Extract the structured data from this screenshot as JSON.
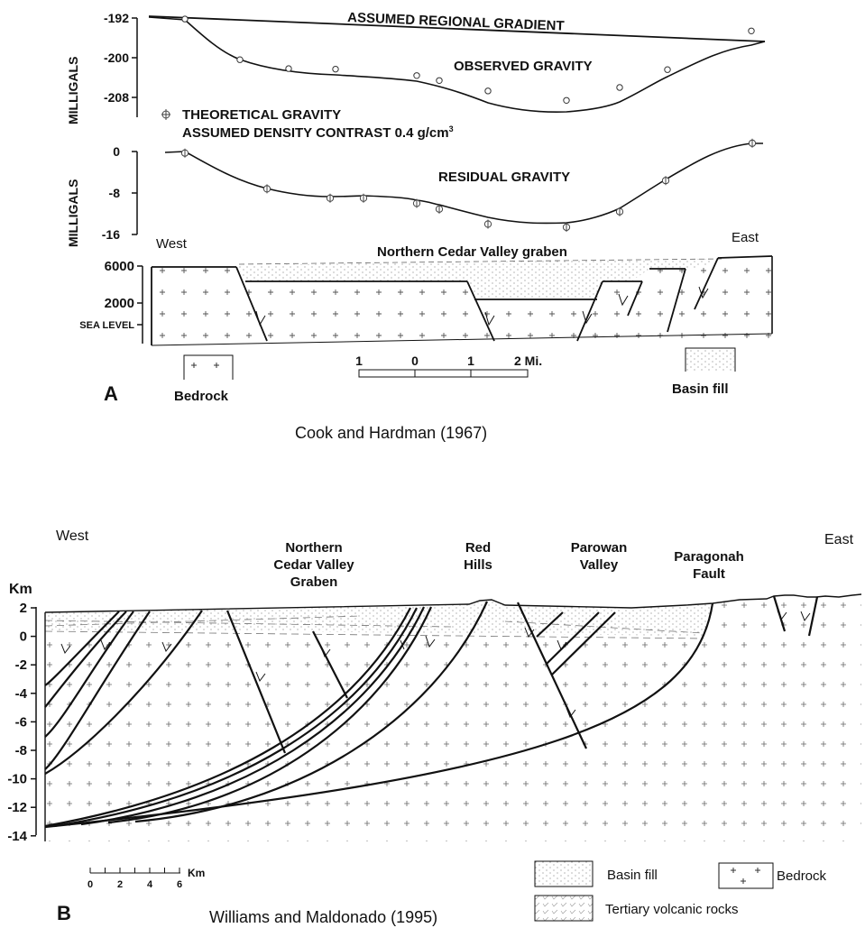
{
  "panel_a": {
    "letter": "A",
    "citation": "Cook and Hardman (1967)",
    "gravity_plot": {
      "ylabel": "MILLIGALS",
      "ticks": [
        "-192",
        "-200",
        "-208"
      ],
      "regional_label": "ASSUMED REGIONAL GRADIENT",
      "observed_label": "OBSERVED GRAVITY",
      "theoretical_label": "THEORETICAL GRAVITY",
      "density_label": "ASSUMED DENSITY CONTRAST 0.4 g/cm",
      "density_exponent": "3",
      "observed_mgal": [
        -192.2,
        -200.4,
        -202.2,
        -202.3,
        -203.6,
        -204.6,
        -206.7,
        -208.6,
        -206.0,
        -202.4,
        -194.6
      ]
    },
    "residual_plot": {
      "ylabel": "MILLIGALS",
      "ticks": [
        "0",
        "-8",
        "-16"
      ],
      "residual_label": "RESIDUAL GRAVITY",
      "residual_mgal": [
        -0.3,
        -7.2,
        -9.0,
        -9.0,
        -10.0,
        -11.1,
        -14.0,
        -14.6,
        -11.6,
        -5.6,
        1.6
      ]
    },
    "section": {
      "west": "West",
      "east": "East",
      "title": "Northern Cedar Valley graben",
      "elev_ticks": [
        "6000",
        "2000",
        "SEA LEVEL"
      ]
    },
    "scale": {
      "labels": [
        "1",
        "0",
        "1",
        "2 Mi."
      ]
    },
    "legend": {
      "bedrock": "Bedrock",
      "basin_fill": "Basin fill"
    }
  },
  "panel_b": {
    "letter": "B",
    "citation": "Williams and Maldonado (1995)",
    "west": "West",
    "east": "East",
    "unit": "Km",
    "depth_ticks": [
      "2",
      "0",
      "-2",
      "-4",
      "-6",
      "-8",
      "-10",
      "-12",
      "-14"
    ],
    "features": {
      "graben": [
        "Northern",
        "Cedar Valley",
        "Graben"
      ],
      "red_hills": [
        "Red",
        "Hills"
      ],
      "parowan": [
        "Parowan",
        "Valley"
      ],
      "paragonah": [
        "Paragonah",
        "Fault"
      ]
    },
    "scale": {
      "unit": "Km",
      "labels": [
        "0",
        "2",
        "4",
        "6"
      ]
    },
    "legend": {
      "basin_fill": "Basin fill",
      "bedrock": "Bedrock",
      "volcanic": "Tertiary volcanic rocks"
    }
  }
}
